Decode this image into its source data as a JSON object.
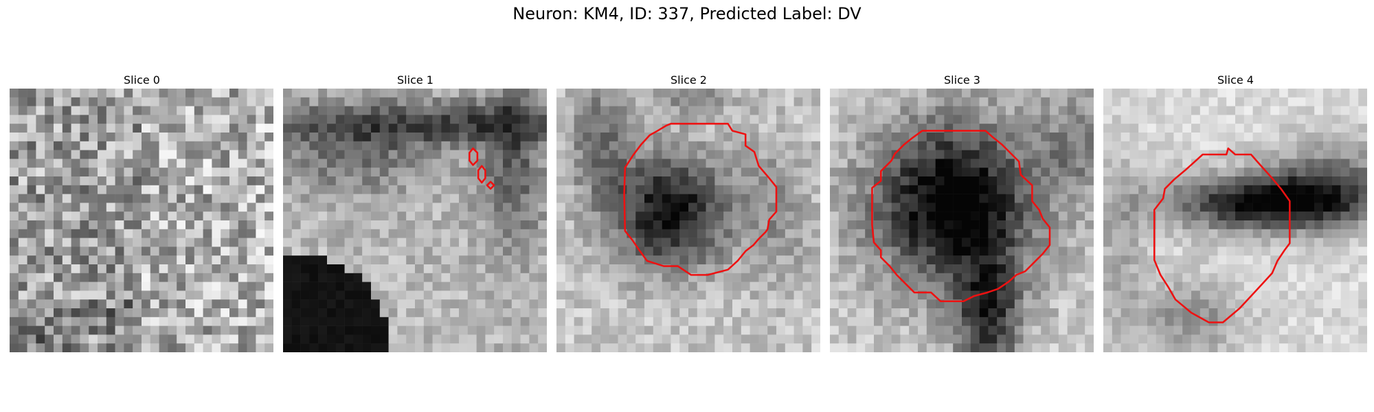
{
  "figure": {
    "title": "Neuron: KM4, ID: 337, Predicted Label: DV"
  },
  "panels": [
    {
      "title": "Slice 0",
      "style": "noise",
      "contour": "none"
    },
    {
      "title": "Slice 1",
      "style": "membrane-dark-corner",
      "contour": "small-fragments"
    },
    {
      "title": "Slice 2",
      "style": "dark-blob-center",
      "contour": "large-octagon"
    },
    {
      "title": "Slice 3",
      "style": "dark-blob-large",
      "contour": "large-octagon"
    },
    {
      "title": "Slice 4",
      "style": "dark-band",
      "contour": "elongated"
    }
  ],
  "colors": {
    "contour": "#ee1111"
  }
}
